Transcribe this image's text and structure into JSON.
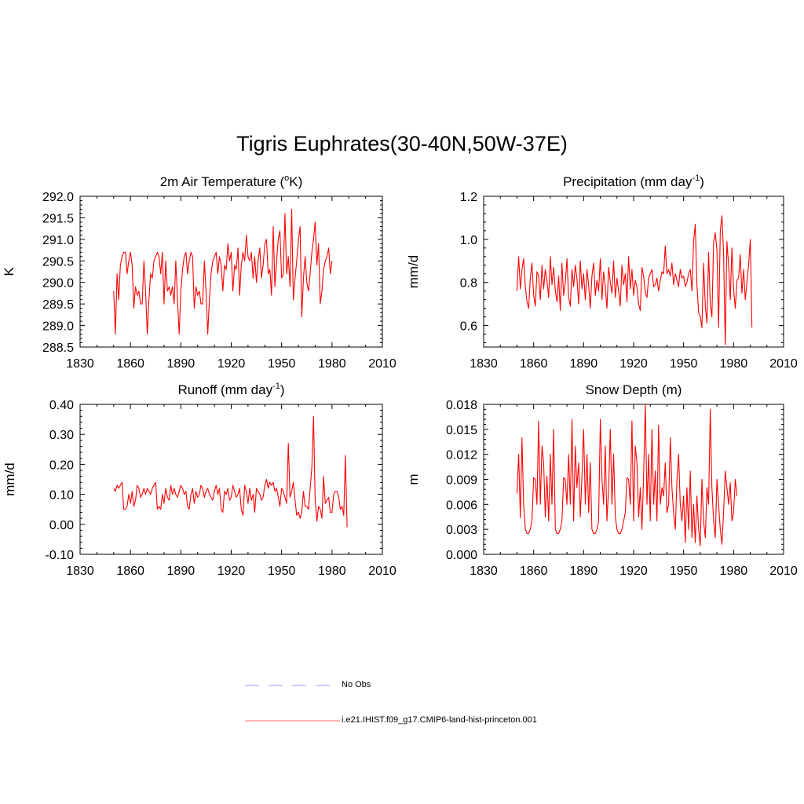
{
  "title": "Tigris Euphrates(30-40N,50W-37E)",
  "legend": [
    {
      "label": "No Obs",
      "color": "#9999ff",
      "style": "dashed"
    },
    {
      "label": "i.e21.IHIST.f09_g17.CMIP6-land-hist-princeton.001",
      "color": "#ff6666",
      "style": "solid"
    }
  ],
  "colors": {
    "series": "#ff0000"
  },
  "chart_data": [
    {
      "type": "line",
      "title": "2m Air Temperature (",
      "title_sup": "o",
      "title_after": "K)",
      "ylabel": "K",
      "xlim": [
        1830,
        2010
      ],
      "ylim": [
        288.5,
        292.0
      ],
      "xticks": [
        1830,
        1860,
        1890,
        1920,
        1950,
        1980,
        2010
      ],
      "xtick_labels": [
        "1830",
        "1860",
        "1890",
        "1920",
        "1950",
        "1980",
        "2010"
      ],
      "yticks": [
        288.5,
        289.0,
        289.5,
        290.0,
        290.5,
        291.0,
        291.5,
        292.0
      ],
      "ytick_labels": [
        "288.5",
        "289.0",
        "289.5",
        "290.0",
        "290.5",
        "291.0",
        "291.5",
        "292.0"
      ],
      "x_start": 1850,
      "values": [
        289.8,
        288.8,
        290.2,
        289.6,
        290.4,
        290.6,
        290.7,
        290.7,
        290.2,
        290.5,
        290.7,
        290.4,
        289.4,
        289.9,
        289.7,
        289.8,
        289.5,
        289.5,
        290.5,
        289.8,
        288.8,
        289.6,
        290.2,
        290.1,
        290.5,
        290.6,
        290.7,
        290.6,
        290.2,
        290.7,
        289.5,
        290.5,
        289.8,
        289.9,
        289.7,
        289.9,
        289.5,
        290.5,
        289.6,
        288.8,
        289.8,
        290.3,
        290.6,
        290.7,
        290.2,
        290.5,
        290.7,
        290.6,
        289.4,
        289.9,
        289.7,
        289.8,
        289.5,
        289.5,
        290.5,
        289.8,
        288.8,
        289.6,
        290.2,
        290.5,
        290.6,
        290.7,
        290.2,
        290.6,
        290.4,
        289.8,
        290.4,
        290.3,
        290.9,
        290.5,
        290.7,
        289.8,
        290.4,
        290.3,
        290.8,
        289.7,
        290.4,
        290.7,
        290.5,
        291.1,
        290.6,
        290.5,
        290.7,
        290.1,
        290.6,
        290.0,
        290.5,
        290.8,
        290.1,
        290.4,
        290.9,
        291.0,
        290.2,
        290.3,
        289.7,
        291.3,
        289.9,
        290.5,
        291.0,
        291.2,
        290.1,
        290.2,
        291.6,
        290.2,
        290.6,
        289.9,
        291.7,
        289.6,
        290.1,
        290.5,
        291.0,
        291.3,
        289.2,
        290.1,
        290.6,
        290.0,
        289.8,
        290.2,
        290.7,
        291.0,
        291.4,
        290.4,
        290.9,
        289.5,
        289.8,
        290.3,
        290.5,
        290.6,
        290.8,
        290.2,
        290.5
      ]
    },
    {
      "type": "line",
      "title": "Precipitation (mm day",
      "title_sup": "-1",
      "title_after": ")",
      "ylabel": "mm/d",
      "xlim": [
        1830,
        2010
      ],
      "ylim": [
        0.5,
        1.2
      ],
      "xticks": [
        1830,
        1860,
        1890,
        1920,
        1950,
        1980,
        2010
      ],
      "xtick_labels": [
        "1830",
        "1860",
        "1890",
        "1920",
        "1950",
        "1980",
        "2010"
      ],
      "yticks": [
        0.6,
        0.8,
        1.0,
        1.2
      ],
      "ytick_labels": [
        "0.6",
        "0.8",
        "1.0",
        "1.2"
      ],
      "x_start": 1850,
      "values": [
        0.76,
        0.92,
        0.77,
        0.86,
        0.91,
        0.78,
        0.71,
        0.68,
        0.82,
        0.89,
        0.74,
        0.69,
        0.85,
        0.83,
        0.72,
        0.88,
        0.77,
        0.86,
        0.81,
        0.73,
        0.92,
        0.79,
        0.87,
        0.76,
        0.71,
        0.83,
        0.67,
        0.89,
        0.74,
        0.8,
        0.91,
        0.73,
        0.69,
        0.86,
        0.78,
        0.88,
        0.82,
        0.7,
        0.9,
        0.77,
        0.84,
        0.72,
        0.86,
        0.79,
        0.68,
        0.83,
        0.89,
        0.74,
        0.81,
        0.76,
        0.91,
        0.72,
        0.85,
        0.78,
        0.68,
        0.87,
        0.8,
        0.75,
        0.9,
        0.73,
        0.82,
        0.76,
        0.69,
        0.88,
        0.79,
        0.84,
        0.71,
        0.92,
        0.77,
        0.86,
        0.74,
        0.81,
        0.78,
        0.7,
        0.67,
        0.87,
        0.83,
        0.75,
        0.73,
        0.82,
        0.84,
        0.86,
        0.78,
        0.79,
        0.82,
        0.76,
        0.81,
        0.85,
        0.84,
        0.97,
        0.84,
        0.86,
        0.83,
        0.89,
        0.79,
        0.84,
        0.81,
        0.78,
        0.86,
        0.82,
        0.83,
        0.78,
        0.8,
        0.84,
        0.86,
        0.76,
        0.99,
        1.07,
        0.79,
        0.66,
        0.64,
        0.59,
        0.89,
        0.69,
        0.61,
        0.94,
        0.7,
        0.64,
        0.99,
        1.03,
        0.95,
        0.59,
        1.04,
        1.11,
        0.93,
        0.51,
        0.99,
        0.88,
        0.72,
        0.96,
        0.77,
        0.68,
        0.81,
        0.82,
        0.93,
        0.75,
        0.86,
        0.72,
        0.8,
        0.88,
        1.0,
        0.59
      ]
    },
    {
      "type": "line",
      "title": "Runoff (mm day",
      "title_sup": "-1",
      "title_after": ")",
      "ylabel": "mm/d",
      "xlim": [
        1830,
        2010
      ],
      "ylim": [
        -0.1,
        0.4
      ],
      "xticks": [
        1830,
        1860,
        1890,
        1920,
        1950,
        1980,
        2010
      ],
      "xtick_labels": [
        "1830",
        "1860",
        "1890",
        "1920",
        "1950",
        "1980",
        "2010"
      ],
      "yticks": [
        -0.1,
        0.0,
        0.1,
        0.2,
        0.3,
        0.4
      ],
      "ytick_labels": [
        "-0.10",
        "0.00",
        "0.10",
        "0.20",
        "0.30",
        "0.40"
      ],
      "x_start": 1850,
      "values": [
        0.12,
        0.11,
        0.13,
        0.12,
        0.13,
        0.14,
        0.05,
        0.05,
        0.06,
        0.1,
        0.07,
        0.11,
        0.06,
        0.08,
        0.13,
        0.12,
        0.09,
        0.1,
        0.12,
        0.1,
        0.12,
        0.11,
        0.1,
        0.12,
        0.13,
        0.14,
        0.05,
        0.06,
        0.05,
        0.1,
        0.07,
        0.12,
        0.09,
        0.08,
        0.13,
        0.1,
        0.12,
        0.1,
        0.09,
        0.11,
        0.13,
        0.12,
        0.1,
        0.11,
        0.06,
        0.05,
        0.1,
        0.12,
        0.07,
        0.11,
        0.09,
        0.1,
        0.13,
        0.12,
        0.09,
        0.11,
        0.12,
        0.1,
        0.09,
        0.08,
        0.11,
        0.13,
        0.1,
        0.12,
        0.05,
        0.04,
        0.11,
        0.1,
        0.12,
        0.08,
        0.09,
        0.13,
        0.11,
        0.09,
        0.1,
        0.12,
        0.05,
        0.03,
        0.13,
        0.11,
        0.07,
        0.12,
        0.08,
        0.1,
        0.04,
        0.12,
        0.11,
        0.1,
        0.08,
        0.09,
        0.13,
        0.15,
        0.12,
        0.14,
        0.13,
        0.14,
        0.11,
        0.12,
        0.09,
        0.06,
        0.12,
        0.11,
        0.09,
        0.07,
        0.27,
        0.09,
        0.11,
        0.14,
        0.08,
        0.03,
        0.04,
        0.02,
        0.04,
        0.11,
        0.06,
        0.06,
        0.05,
        0.12,
        0.19,
        0.36,
        0.08,
        0.01,
        0.06,
        0.05,
        0.02,
        0.16,
        0.07,
        0.08,
        0.09,
        0.04,
        0.04,
        0.1,
        0.11,
        0.11,
        0.09,
        0.05,
        0.06,
        0.03,
        0.23,
        -0.01
      ]
    },
    {
      "type": "line",
      "title": "Snow Depth (m)",
      "title_sup": "",
      "title_after": "",
      "ylabel": "m",
      "xlim": [
        1830,
        2010
      ],
      "ylim": [
        0.0,
        0.018
      ],
      "xticks": [
        1830,
        1860,
        1890,
        1920,
        1950,
        1980,
        2010
      ],
      "xtick_labels": [
        "1830",
        "1860",
        "1890",
        "1920",
        "1950",
        "1980",
        "2010"
      ],
      "yticks": [
        0.0,
        0.003,
        0.006,
        0.009,
        0.012,
        0.015,
        0.018
      ],
      "ytick_labels": [
        "0.000",
        "0.003",
        "0.006",
        "0.009",
        "0.012",
        "0.015",
        "0.018"
      ],
      "x_start": 1850,
      "values": [
        0.0073,
        0.012,
        0.0044,
        0.014,
        0.006,
        0.003,
        0.0025,
        0.0025,
        0.003,
        0.004,
        0.0092,
        0.009,
        0.006,
        0.016,
        0.006,
        0.013,
        0.011,
        0.0045,
        0.0094,
        0.004,
        0.012,
        0.006,
        0.015,
        0.003,
        0.0025,
        0.0025,
        0.003,
        0.004,
        0.0092,
        0.009,
        0.006,
        0.012,
        0.006,
        0.0162,
        0.004,
        0.013,
        0.008,
        0.011,
        0.0045,
        0.0094,
        0.015,
        0.006,
        0.012,
        0.005,
        0.011,
        0.003,
        0.0025,
        0.0025,
        0.003,
        0.004,
        0.0162,
        0.009,
        0.006,
        0.013,
        0.004,
        0.008,
        0.015,
        0.006,
        0.012,
        0.0045,
        0.003,
        0.0025,
        0.0025,
        0.003,
        0.004,
        0.005,
        0.0092,
        0.009,
        0.006,
        0.016,
        0.004,
        0.013,
        0.011,
        0.0045,
        0.008,
        0.003,
        0.0094,
        0.018,
        0.006,
        0.012,
        0.004,
        0.015,
        0.006,
        0.01,
        0.004,
        0.0155,
        0.006,
        0.008,
        0.007,
        0.011,
        0.005,
        0.006,
        0.014,
        0.008,
        0.005,
        0.003,
        0.009,
        0.012,
        0.006,
        0.004,
        0.007,
        0.0014,
        0.008,
        0.003,
        0.01,
        0.002,
        0.006,
        0.0014,
        0.007,
        0.003,
        0.001,
        0.009,
        0.004,
        0.002,
        0.008,
        0.006,
        0.0174,
        0.008,
        0.004,
        0.002,
        0.009,
        0.006,
        0.003,
        0.0012,
        0.005,
        0.01,
        0.008,
        0.006,
        0.0086,
        0.004,
        0.005,
        0.009,
        0.007
      ]
    }
  ]
}
